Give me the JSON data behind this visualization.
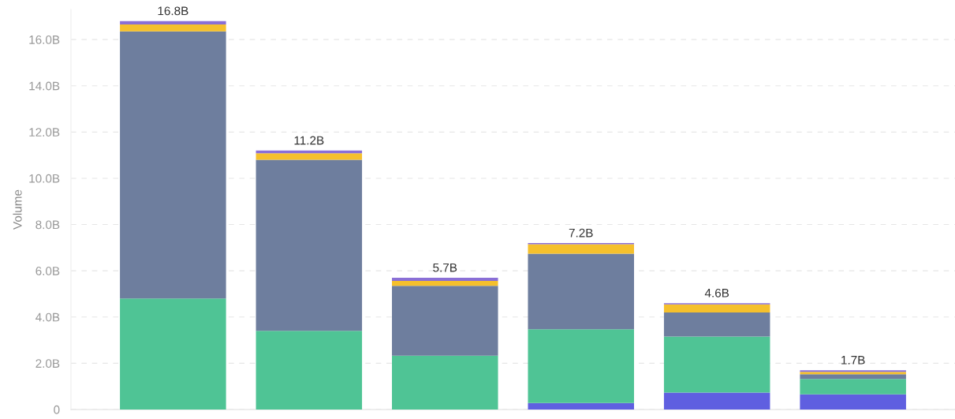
{
  "chart_data": {
    "type": "bar",
    "stacked": true,
    "ylabel": "Volume",
    "categories": [
      null,
      null,
      null,
      null,
      null,
      null
    ],
    "series": [
      {
        "color": "#5f5fe0",
        "values": [
          0,
          0,
          0,
          0.28,
          0.73,
          0.66
        ]
      },
      {
        "color": "#4fc495",
        "values": [
          4.8,
          3.4,
          2.33,
          3.19,
          2.43,
          0.66
        ]
      },
      {
        "color": "#6e7e9e",
        "values": [
          11.55,
          7.4,
          3.02,
          3.27,
          1.04,
          0.21
        ]
      },
      {
        "color": "#f5c02c",
        "values": [
          0.3,
          0.28,
          0.21,
          0.41,
          0.35,
          0.1
        ]
      },
      {
        "color": "#8a6fd6",
        "values": [
          0.15,
          0.12,
          0.14,
          0.05,
          0.05,
          0.07
        ]
      }
    ],
    "totals": [
      "16.8B",
      "11.2B",
      "5.7B",
      "7.2B",
      "4.6B",
      "1.7B"
    ],
    "ylim": [
      0,
      17.3
    ],
    "yticks": [
      {
        "value": 0,
        "label": "0"
      },
      {
        "value": 2,
        "label": "2.0B"
      },
      {
        "value": 4,
        "label": "4.0B"
      },
      {
        "value": 6,
        "label": "6.0B"
      },
      {
        "value": 8,
        "label": "8.0B"
      },
      {
        "value": 10,
        "label": "10.0B"
      },
      {
        "value": 12,
        "label": "12.0B"
      },
      {
        "value": 14,
        "label": "14.0B"
      },
      {
        "value": 16,
        "label": "16.0B"
      }
    ],
    "grid": "y"
  }
}
